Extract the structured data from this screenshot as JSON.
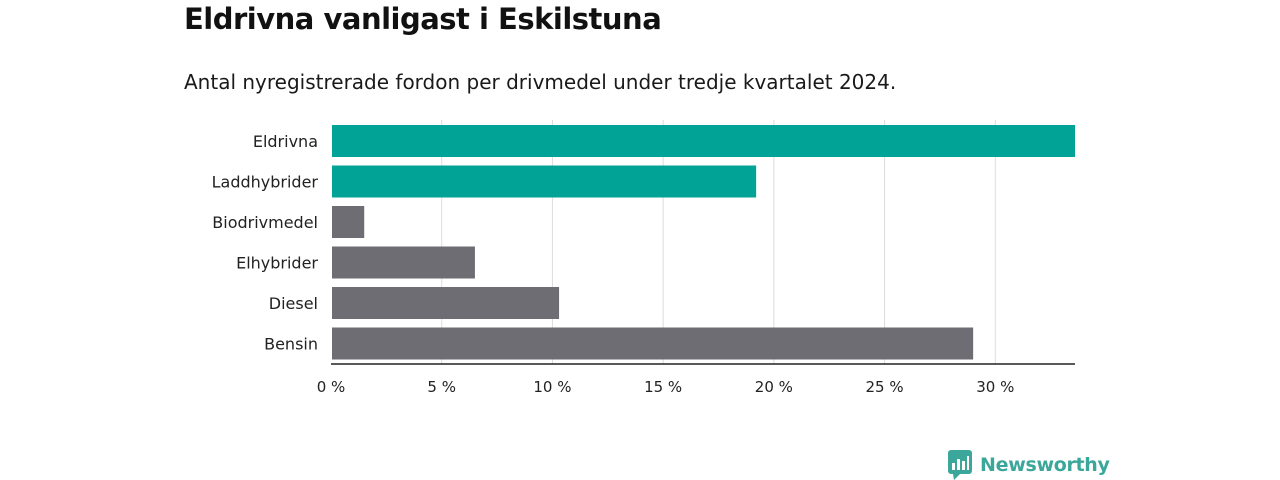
{
  "header": {
    "title": "Eldrivna vanligast i Eskilstuna",
    "subtitle": "Antal nyregistrerade fordon per drivmedel under tredje kvartalet 2024."
  },
  "brand": {
    "name": "Newsworthy",
    "icon": "newsworthy-logo-icon",
    "color": "#3aa79a"
  },
  "chart_data": {
    "type": "bar",
    "orientation": "horizontal",
    "categories": [
      "Eldrivna",
      "Laddhybrider",
      "Biodrivmedel",
      "Elhybrider",
      "Diesel",
      "Bensin"
    ],
    "values": [
      33.6,
      19.2,
      1.5,
      6.5,
      10.3,
      29.0
    ],
    "colors": [
      "#00a396",
      "#00a396",
      "#6e6d73",
      "#6e6d73",
      "#6e6d73",
      "#6e6d73"
    ],
    "xticks": [
      0,
      5,
      10,
      15,
      20,
      25,
      30
    ],
    "xtick_labels": [
      "0 %",
      "5 %",
      "10 %",
      "15 %",
      "20 %",
      "25 %",
      "30 %"
    ],
    "xlim": [
      0,
      33.6
    ],
    "grid": true
  }
}
